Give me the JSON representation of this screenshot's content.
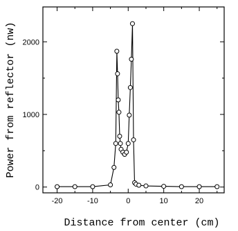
{
  "chart_data": {
    "type": "line",
    "title": "",
    "xlabel": "Distance from center (cm)",
    "ylabel": "Power from reflector (nw)",
    "xlim": [
      -24,
      27
    ],
    "ylim": [
      -80,
      2480
    ],
    "xticks": [
      -20,
      -10,
      0,
      10,
      20
    ],
    "xticks_minor": [
      -15,
      -5,
      5,
      15,
      25
    ],
    "yticks": [
      0,
      1000,
      2000
    ],
    "yticks_minor": [
      500,
      1500
    ],
    "grid": false,
    "series": [
      {
        "marker": "open-circle",
        "x": [
          -20,
          -15,
          -10,
          -5,
          -4,
          -3.5,
          -3.2,
          -3.0,
          -2.8,
          -2.6,
          -2.4,
          -2.2,
          -2.0,
          -1.5,
          -1.0,
          -0.5,
          0,
          0.3,
          0.6,
          0.9,
          1.2,
          1.5,
          1.8,
          2.2,
          3,
          5,
          10,
          15,
          20,
          25
        ],
        "y": [
          5,
          5,
          5,
          30,
          270,
          600,
          1870,
          1560,
          1200,
          1030,
          700,
          600,
          520,
          480,
          450,
          480,
          600,
          990,
          1370,
          1760,
          2250,
          650,
          60,
          40,
          25,
          15,
          10,
          5,
          5,
          5
        ]
      }
    ]
  },
  "labels": {
    "xlabel": "Distance from center (cm)",
    "ylabel": "Power from reflector (nw)"
  }
}
